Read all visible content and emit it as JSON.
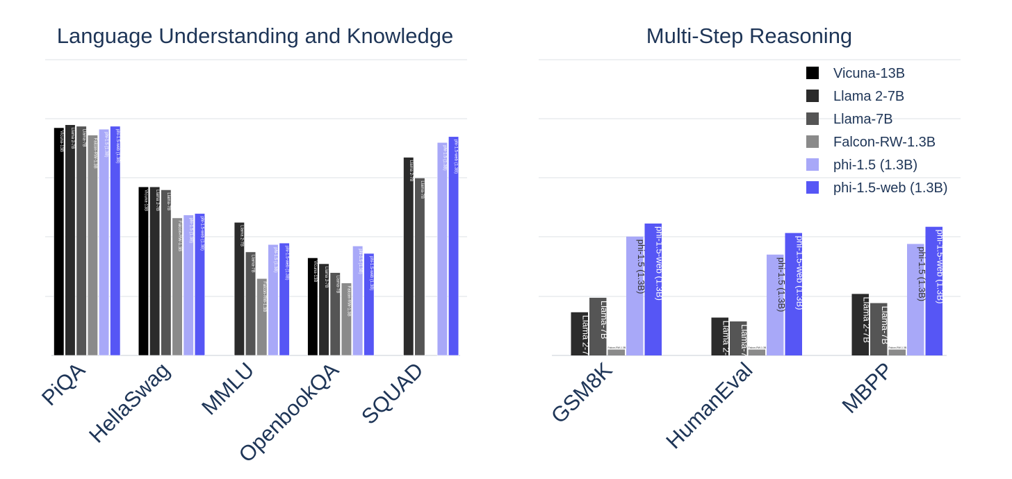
{
  "chart_data": [
    {
      "type": "bar",
      "title": "Language Understanding and Knowledge",
      "xlabel": "",
      "ylabel": "",
      "ylim": [
        0,
        100
      ],
      "grid": true,
      "categories": [
        "PiQA",
        "HellaSwag",
        "MMLU",
        "OpenbookQA",
        "SQUAD"
      ],
      "series": [
        {
          "name": "Vicuna-13B",
          "values": [
            77,
            57,
            null,
            33,
            null
          ]
        },
        {
          "name": "Llama 2-7B",
          "values": [
            78,
            57,
            45,
            31,
            67
          ]
        },
        {
          "name": "Llama-7B",
          "values": [
            77.5,
            56,
            35,
            28,
            60
          ]
        },
        {
          "name": "Falcon-RW-1.3B",
          "values": [
            74.5,
            46.5,
            26,
            24.5,
            null
          ]
        },
        {
          "name": "phi-1.5 (1.3B)",
          "values": [
            76.5,
            47.5,
            37.5,
            37,
            72
          ]
        },
        {
          "name": "phi-1.5-web (1.3B)",
          "values": [
            77.5,
            48,
            38,
            34.5,
            74
          ]
        }
      ],
      "bar_labels": {
        "PiQA": [
          "Vicuna-13B",
          "Llama 2-7B",
          "Llama-7B",
          "Falcon-RW-1.3B",
          "phi-1.5 (1.3B)",
          "phi-1.5-web (1.3B)"
        ],
        "HellaSwag": [
          "Vicuna-13B",
          "Llama 2-7B",
          "Llama-7B",
          "Falcon-RW-1.3B",
          "phi-1.5 (1.3B)",
          "phi-1.5-web (1.3B)"
        ],
        "MMLU": [
          "",
          "Llama 2-7B",
          "Llama-7B",
          "Falcon-RW-1.3B",
          "phi-1.5 (1.3B)",
          "phi-1.5-web (1.3B)"
        ],
        "OpenbookQA": [
          "Vicuna-13B",
          "Llama 2-7B",
          "Llama-7B",
          "Falcon-RW-1.3B",
          "phi-1.5 (1.3B)",
          "phi-1.5-web (1.3B)"
        ],
        "SQUAD": [
          "",
          "Llama 2-7B",
          "Llama-7B",
          "",
          "phi-1.5 (1.3B)",
          "phi-1.5-web (1.3B)"
        ]
      }
    },
    {
      "type": "bar",
      "title": "Multi-Step Reasoning",
      "xlabel": "",
      "ylabel": "",
      "ylim": [
        0,
        100
      ],
      "grid": true,
      "legend": "top-right",
      "categories": [
        "GSM8K",
        "HumanEval",
        "MBPP"
      ],
      "series": [
        {
          "name": "Vicuna-13B",
          "values": [
            null,
            null,
            null
          ]
        },
        {
          "name": "Llama 2-7B",
          "values": [
            14.6,
            12.8,
            20.8
          ]
        },
        {
          "name": "Llama-7B",
          "values": [
            19.5,
            11.5,
            17.7
          ]
        },
        {
          "name": "Falcon-RW-1.3B",
          "values": [
            2,
            2,
            2
          ]
        },
        {
          "name": "phi-1.5 (1.3B)",
          "values": [
            40.2,
            34.1,
            37.7
          ]
        },
        {
          "name": "phi-1.5-web (1.3B)",
          "values": [
            44.6,
            41.4,
            43.5
          ]
        }
      ],
      "bar_labels": {
        "GSM8K": [
          "",
          "Llama 2-7B",
          "Llama-7B",
          "Falcon-RW-1.3B",
          "phi-1.5 (1.3B)",
          "phi-1.5-web (1.3B)"
        ],
        "HumanEval": [
          "",
          "Llama 2-7B",
          "Llama-7B",
          "Falcon-RW-1.3B",
          "phi-1.5 (1.3B)",
          "phi-1.5-web (1.3B)"
        ],
        "MBPP": [
          "",
          "Llama 2-7B",
          "Llama-7B",
          "Falcon-RW-1.3B",
          "phi-1.5 (1.3B)",
          "phi-1.5-web (1.3B)"
        ]
      }
    }
  ],
  "colors": {
    "Vicuna-13B": "#000000",
    "Llama 2-7B": "#2b2b2b",
    "Llama-7B": "#555555",
    "Falcon-RW-1.3B": "#8a8a8a",
    "phi-1.5 (1.3B)": "#a8a8f8",
    "phi-1.5-web (1.3B)": "#5656f5"
  }
}
